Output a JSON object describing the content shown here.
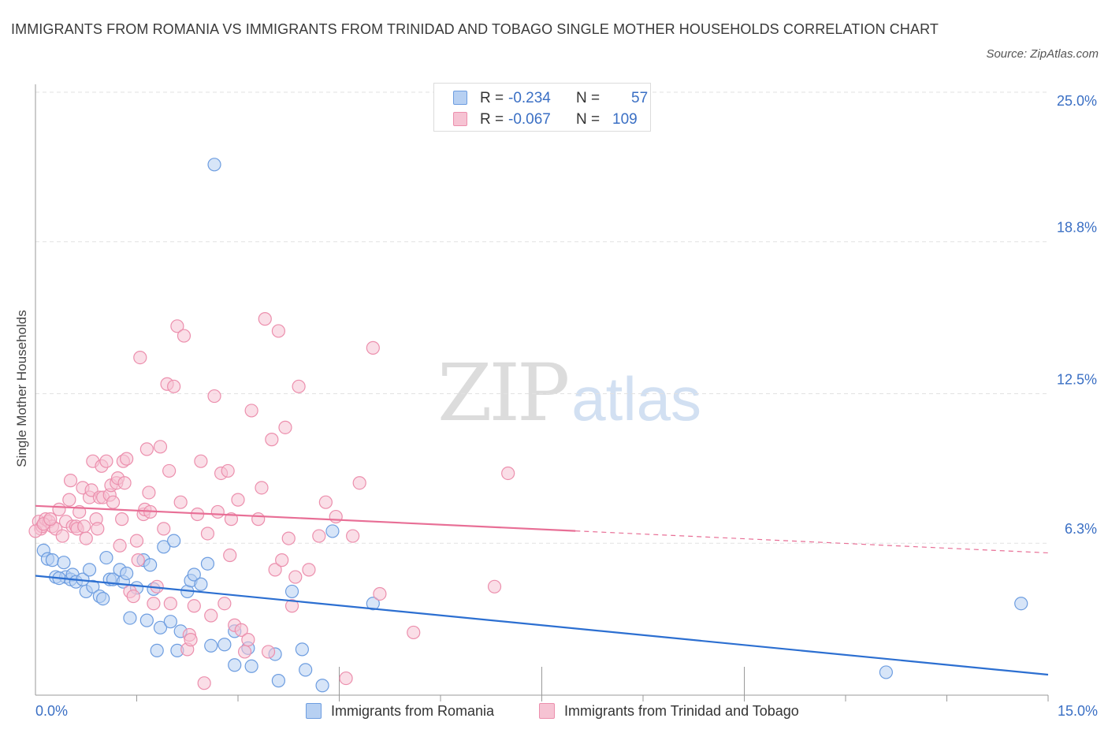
{
  "title": "IMMIGRANTS FROM ROMANIA VS IMMIGRANTS FROM TRINIDAD AND TOBAGO SINGLE MOTHER HOUSEHOLDS CORRELATION CHART",
  "source": "Source: ZipAtlas.com",
  "watermark": {
    "zip": "ZIP",
    "atlas": "atlas"
  },
  "legend_top": [
    {
      "r_label": "R =",
      "r_value": "-0.234",
      "n_label": "N =",
      "n_value": "57"
    },
    {
      "r_label": "R =",
      "r_value": "-0.067",
      "n_label": "N =",
      "n_value": "109"
    }
  ],
  "legend_bottom": [
    "Immigrants from Romania",
    "Immigrants from Trinidad and Tobago"
  ],
  "colors": {
    "romania_fill": "#b7d0f2",
    "romania_stroke": "#6d9de0",
    "romania_line": "#2c6fd1",
    "tt_fill": "#f6c3d3",
    "tt_stroke": "#ec8fad",
    "tt_line": "#e86f96",
    "tick_label": "#3a6fc4",
    "grid": "#e2e2e2"
  },
  "chart_data": {
    "type": "scatter",
    "title": "IMMIGRANTS FROM ROMANIA VS IMMIGRANTS FROM TRINIDAD AND TOBAGO SINGLE MOTHER HOUSEHOLDS CORRELATION CHART",
    "xlabel": "",
    "ylabel": "Single Mother Households",
    "xlim": [
      0,
      15
    ],
    "ylim": [
      0,
      25
    ],
    "x_tick_labels": [
      "0.0%",
      "15.0%"
    ],
    "y_ticks": [
      6.3,
      12.5,
      18.8,
      25.0
    ],
    "y_tick_labels": [
      "6.3%",
      "12.5%",
      "18.8%",
      "25.0%"
    ],
    "grid": true,
    "legend_position": "top-center",
    "series": [
      {
        "name": "Immigrants from Romania",
        "r": -0.234,
        "n": 57,
        "trend": {
          "x": [
            0,
            15
          ],
          "y": [
            4.95,
            0.85
          ],
          "dashed_from": null
        },
        "points": [
          [
            0.12,
            6.0
          ],
          [
            0.18,
            5.65
          ],
          [
            0.25,
            5.6
          ],
          [
            0.3,
            4.9
          ],
          [
            0.42,
            5.5
          ],
          [
            0.45,
            4.9
          ],
          [
            0.52,
            4.8
          ],
          [
            0.55,
            5.0
          ],
          [
            0.6,
            4.7
          ],
          [
            0.7,
            4.8
          ],
          [
            0.75,
            4.3
          ],
          [
            0.8,
            5.2
          ],
          [
            0.85,
            4.5
          ],
          [
            0.95,
            4.1
          ],
          [
            1.0,
            4.0
          ],
          [
            1.05,
            5.7
          ],
          [
            1.1,
            4.8
          ],
          [
            1.15,
            4.8
          ],
          [
            1.25,
            5.2
          ],
          [
            1.3,
            4.7
          ],
          [
            1.35,
            5.05
          ],
          [
            1.4,
            3.2
          ],
          [
            1.5,
            4.45
          ],
          [
            1.6,
            5.6
          ],
          [
            1.65,
            3.1
          ],
          [
            1.7,
            5.4
          ],
          [
            1.8,
            1.85
          ],
          [
            1.85,
            2.8
          ],
          [
            1.9,
            6.15
          ],
          [
            2.0,
            3.05
          ],
          [
            2.05,
            6.4
          ],
          [
            2.1,
            1.85
          ],
          [
            2.15,
            2.65
          ],
          [
            2.25,
            4.3
          ],
          [
            2.3,
            4.75
          ],
          [
            2.35,
            5.0
          ],
          [
            2.45,
            4.6
          ],
          [
            2.55,
            5.45
          ],
          [
            2.6,
            2.05
          ],
          [
            2.65,
            22.0
          ],
          [
            2.8,
            2.1
          ],
          [
            2.95,
            1.25
          ],
          [
            2.95,
            2.65
          ],
          [
            3.15,
            1.95
          ],
          [
            3.2,
            1.2
          ],
          [
            3.55,
            1.7
          ],
          [
            3.6,
            0.6
          ],
          [
            3.8,
            4.3
          ],
          [
            3.95,
            1.9
          ],
          [
            4.0,
            1.05
          ],
          [
            4.25,
            0.4
          ],
          [
            4.4,
            6.8
          ],
          [
            5.0,
            3.8
          ],
          [
            14.6,
            3.8
          ],
          [
            12.6,
            0.95
          ],
          [
            0.35,
            4.85
          ],
          [
            1.75,
            4.4
          ]
        ]
      },
      {
        "name": "Immigrants from Trinidad and Tobago",
        "r": -0.067,
        "n": 109,
        "trend": {
          "x": [
            0,
            15
          ],
          "y": [
            7.85,
            5.9
          ],
          "dashed_from": 8.0
        },
        "points": [
          [
            0.05,
            7.2
          ],
          [
            0.08,
            6.9
          ],
          [
            0.1,
            7.0
          ],
          [
            0.15,
            7.3
          ],
          [
            0.2,
            7.2
          ],
          [
            0.25,
            7.0
          ],
          [
            0.3,
            6.9
          ],
          [
            0.35,
            7.7
          ],
          [
            0.4,
            6.6
          ],
          [
            0.45,
            7.2
          ],
          [
            0.5,
            8.1
          ],
          [
            0.52,
            8.9
          ],
          [
            0.55,
            7.0
          ],
          [
            0.6,
            7.0
          ],
          [
            0.62,
            6.9
          ],
          [
            0.65,
            7.6
          ],
          [
            0.7,
            8.6
          ],
          [
            0.72,
            7.0
          ],
          [
            0.75,
            6.5
          ],
          [
            0.8,
            8.2
          ],
          [
            0.83,
            8.5
          ],
          [
            0.85,
            9.7
          ],
          [
            0.9,
            7.3
          ],
          [
            0.92,
            6.9
          ],
          [
            0.95,
            8.2
          ],
          [
            0.98,
            9.5
          ],
          [
            1.0,
            8.2
          ],
          [
            1.05,
            9.7
          ],
          [
            1.1,
            8.3
          ],
          [
            1.12,
            8.7
          ],
          [
            1.15,
            8.0
          ],
          [
            1.2,
            8.8
          ],
          [
            1.22,
            9.0
          ],
          [
            1.25,
            6.2
          ],
          [
            1.28,
            7.3
          ],
          [
            1.3,
            9.7
          ],
          [
            1.32,
            8.8
          ],
          [
            1.35,
            9.8
          ],
          [
            1.4,
            4.3
          ],
          [
            1.45,
            4.1
          ],
          [
            1.5,
            6.4
          ],
          [
            1.52,
            5.6
          ],
          [
            1.55,
            14.0
          ],
          [
            1.6,
            7.5
          ],
          [
            1.62,
            7.7
          ],
          [
            1.65,
            10.2
          ],
          [
            1.68,
            8.4
          ],
          [
            1.7,
            7.6
          ],
          [
            1.75,
            3.8
          ],
          [
            1.8,
            4.5
          ],
          [
            1.85,
            10.3
          ],
          [
            1.9,
            6.9
          ],
          [
            1.95,
            12.9
          ],
          [
            1.98,
            9.3
          ],
          [
            2.0,
            3.8
          ],
          [
            2.05,
            12.8
          ],
          [
            2.1,
            15.3
          ],
          [
            2.15,
            8.0
          ],
          [
            2.2,
            14.9
          ],
          [
            2.25,
            1.9
          ],
          [
            2.28,
            2.5
          ],
          [
            2.3,
            2.3
          ],
          [
            2.35,
            3.7
          ],
          [
            2.4,
            7.5
          ],
          [
            2.45,
            9.7
          ],
          [
            2.5,
            0.5
          ],
          [
            2.55,
            6.7
          ],
          [
            2.6,
            3.3
          ],
          [
            2.65,
            12.4
          ],
          [
            2.7,
            7.6
          ],
          [
            2.75,
            9.2
          ],
          [
            2.8,
            3.8
          ],
          [
            2.85,
            9.3
          ],
          [
            2.88,
            5.8
          ],
          [
            2.9,
            7.3
          ],
          [
            2.95,
            2.9
          ],
          [
            3.0,
            8.1
          ],
          [
            3.05,
            2.7
          ],
          [
            3.1,
            1.8
          ],
          [
            3.15,
            2.3
          ],
          [
            3.2,
            11.8
          ],
          [
            3.3,
            7.3
          ],
          [
            3.35,
            8.6
          ],
          [
            3.4,
            15.6
          ],
          [
            3.45,
            1.8
          ],
          [
            3.5,
            10.6
          ],
          [
            3.55,
            5.2
          ],
          [
            3.6,
            15.1
          ],
          [
            3.65,
            5.6
          ],
          [
            3.7,
            11.1
          ],
          [
            3.75,
            6.5
          ],
          [
            3.8,
            3.7
          ],
          [
            3.85,
            4.9
          ],
          [
            3.9,
            12.8
          ],
          [
            4.05,
            5.2
          ],
          [
            4.2,
            6.6
          ],
          [
            4.3,
            8.0
          ],
          [
            4.45,
            7.4
          ],
          [
            4.6,
            0.7
          ],
          [
            4.7,
            6.6
          ],
          [
            4.8,
            8.8
          ],
          [
            5.0,
            14.4
          ],
          [
            5.1,
            4.2
          ],
          [
            5.6,
            2.6
          ],
          [
            6.8,
            4.5
          ],
          [
            7.0,
            9.2
          ],
          [
            0.0,
            6.8
          ],
          [
            0.12,
            7.1
          ],
          [
            0.22,
            7.3
          ]
        ]
      }
    ]
  }
}
